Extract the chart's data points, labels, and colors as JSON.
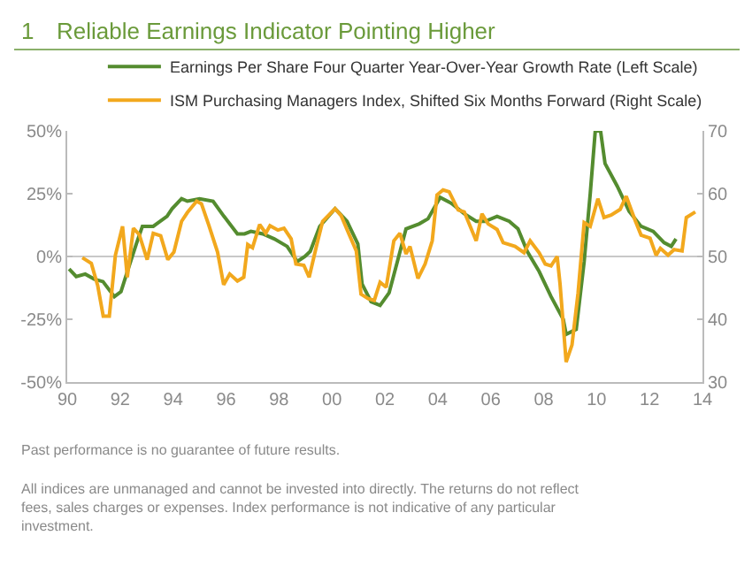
{
  "chart_data": {
    "type": "line",
    "title": "Reliable Earnings Indicator Pointing Higher",
    "annotations": [
      "1",
      "Past performance is no guarantee of future results.",
      "All indices are unmanaged and cannot be invested into directly. The returns do not reflect fees, sales charges or expenses. Index performance is not indicative of any particular investment."
    ],
    "series": [
      {
        "name": "Earnings Per Share Four Quarter Year-Over-Year Growth Rate (Left Scale)",
        "color": "#548c2f",
        "axis": "y",
        "x": [
          1990.07,
          1990.34,
          1990.68,
          1991.02,
          1991.35,
          1991.78,
          1992.03,
          1992.27,
          1992.61,
          1992.84,
          1993.25,
          1993.77,
          1993.96,
          1994.32,
          1994.54,
          1995.0,
          1995.51,
          1995.92,
          1996.43,
          1996.7,
          1996.94,
          1997.39,
          1997.82,
          1998.31,
          1998.69,
          1998.98,
          1999.18,
          1999.54,
          2000.12,
          2000.57,
          2000.98,
          2001.14,
          2001.48,
          2001.82,
          2002.16,
          2002.5,
          2002.8,
          2003.3,
          2003.63,
          2004.09,
          2004.54,
          2005.0,
          2005.45,
          2005.79,
          2006.24,
          2006.7,
          2007.03,
          2007.38,
          2007.83,
          2008.28,
          2008.74,
          2008.85,
          2009.23,
          2009.53,
          2009.76,
          2009.95,
          2010.15,
          2010.32,
          2010.78,
          2011.23,
          2011.68,
          2012.14,
          2012.55,
          2012.82,
          2013.0
        ],
        "values": [
          -5,
          -8,
          -7,
          -9,
          -10,
          -16,
          -14,
          -6,
          5,
          12,
          12,
          16,
          19,
          23,
          22,
          23,
          22,
          16,
          9,
          9,
          10,
          9,
          7,
          4,
          -2,
          0,
          2,
          12,
          19,
          14,
          5,
          -11,
          -18,
          -19.5,
          -14.5,
          -1,
          11,
          13,
          15,
          23.5,
          21,
          17,
          14,
          14,
          16,
          14,
          11,
          2,
          -6,
          -16,
          -25,
          -31,
          -29,
          -2,
          25,
          50,
          50,
          37,
          28,
          18,
          12,
          10,
          5.5,
          4,
          7
        ]
      },
      {
        "name": "ISM Purchasing Managers Index, Shifted Six Months Forward (Right Scale)",
        "color": "#f2a81d",
        "axis": "y2",
        "x": [
          1990.57,
          1990.91,
          1991.15,
          1991.36,
          1991.59,
          1991.82,
          1992.09,
          1992.27,
          1992.5,
          1992.72,
          1993.02,
          1993.25,
          1993.53,
          1993.8,
          1994.03,
          1994.32,
          1994.54,
          1994.89,
          1995.07,
          1995.34,
          1995.68,
          1995.91,
          1996.14,
          1996.43,
          1996.67,
          1996.82,
          1997.0,
          1997.27,
          1997.5,
          1997.66,
          1997.96,
          1998.19,
          1998.46,
          1998.64,
          1998.94,
          1999.14,
          1999.43,
          1999.65,
          2000.12,
          2000.35,
          2000.58,
          2000.92,
          2001.1,
          2001.37,
          2001.6,
          2001.82,
          2002.05,
          2002.34,
          2002.57,
          2002.8,
          2002.95,
          2003.25,
          2003.52,
          2003.79,
          2003.97,
          2004.2,
          2004.43,
          2004.77,
          2005.0,
          2005.45,
          2005.67,
          2005.9,
          2006.24,
          2006.47,
          2006.92,
          2007.26,
          2007.49,
          2007.83,
          2008.06,
          2008.28,
          2008.51,
          2008.62,
          2008.85,
          2009.07,
          2009.3,
          2009.53,
          2009.76,
          2010.05,
          2010.28,
          2010.55,
          2010.89,
          2011.12,
          2011.46,
          2011.68,
          2012.02,
          2012.25,
          2012.41,
          2012.7,
          2012.93,
          2013.23,
          2013.39,
          2013.73
        ],
        "values": [
          49.8,
          48.9,
          45.4,
          40.5,
          40.5,
          50.2,
          54.8,
          46.7,
          54.5,
          53.5,
          49.5,
          53.7,
          53.3,
          49.5,
          50.7,
          55.6,
          57,
          58.8,
          58.4,
          55.1,
          50.7,
          45.5,
          47.2,
          46.1,
          46.7,
          51.9,
          51.4,
          55.1,
          53.7,
          54.9,
          54.2,
          54.5,
          52.8,
          48.8,
          48.6,
          46.7,
          51.9,
          55.6,
          57.6,
          56.5,
          54.2,
          50.9,
          44,
          43.3,
          43,
          45.9,
          45.1,
          52.5,
          53.7,
          50.4,
          51.6,
          46.5,
          48.8,
          52.5,
          59.8,
          60.6,
          60.3,
          57.4,
          57.1,
          52.5,
          56.8,
          55.2,
          54.3,
          52.2,
          51.6,
          50.6,
          52.5,
          50.6,
          48.8,
          48.5,
          50,
          45.6,
          33.2,
          35.9,
          44.2,
          55.4,
          54.8,
          59.2,
          56.2,
          56.6,
          57.5,
          59.6,
          55.7,
          53.4,
          52.9,
          50.2,
          51.3,
          50.2,
          51.1,
          50.9,
          56.2,
          57.1
        ]
      }
    ],
    "xlim": [
      1990,
      2014
    ],
    "xticks": [
      {
        "value": 1990,
        "label": "90"
      },
      {
        "value": 1992,
        "label": "92"
      },
      {
        "value": 1994,
        "label": "94"
      },
      {
        "value": 1996,
        "label": "96"
      },
      {
        "value": 1998,
        "label": "98"
      },
      {
        "value": 2000,
        "label": "00"
      },
      {
        "value": 2002,
        "label": "02"
      },
      {
        "value": 2004,
        "label": "04"
      },
      {
        "value": 2006,
        "label": "06"
      },
      {
        "value": 2008,
        "label": "08"
      },
      {
        "value": 2010,
        "label": "10"
      },
      {
        "value": 2012,
        "label": "12"
      },
      {
        "value": 2014,
        "label": "14"
      }
    ],
    "ylim": [
      -50,
      50
    ],
    "yticks": [
      {
        "value": -50,
        "label": "-50%"
      },
      {
        "value": -25,
        "label": "-25%"
      },
      {
        "value": 0,
        "label": "0%"
      },
      {
        "value": 25,
        "label": "25%"
      },
      {
        "value": 50,
        "label": "50%"
      }
    ],
    "y2lim": [
      30,
      70
    ],
    "y2ticks": [
      30,
      40,
      50,
      60,
      70
    ],
    "ref_lines": [
      {
        "axis": "y",
        "value": 0,
        "color": "#c8c8c8"
      }
    ],
    "grid": false,
    "legend": "top",
    "marker": "none",
    "line_style": "solid"
  }
}
